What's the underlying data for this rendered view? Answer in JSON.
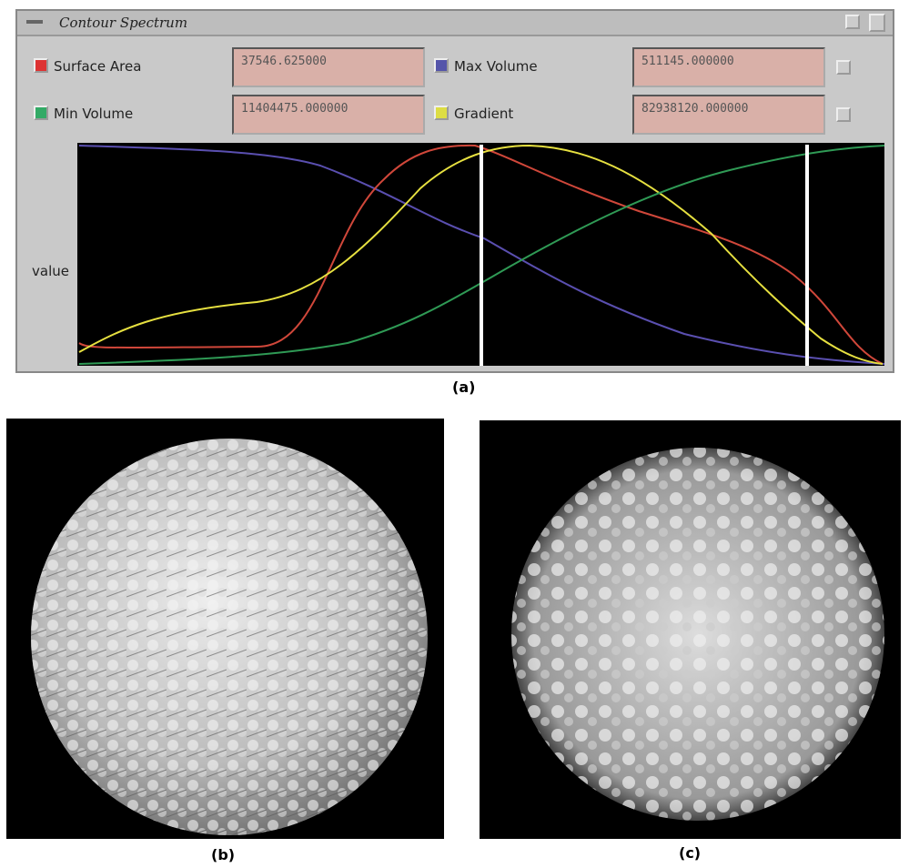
{
  "window": {
    "title": "Contour Spectrum",
    "fields": [
      {
        "label": "Surface Area",
        "value": "37546.625000"
      },
      {
        "label": "Max Volume",
        "value": "511145.000000"
      },
      {
        "label": "Min Volume",
        "value": "11404475.000000"
      },
      {
        "label": "Gradient",
        "value": "82938120.000000"
      }
    ],
    "plot": {
      "y_label": "value"
    }
  },
  "captions": [
    "(a)",
    "(b)",
    "(c)"
  ]
}
